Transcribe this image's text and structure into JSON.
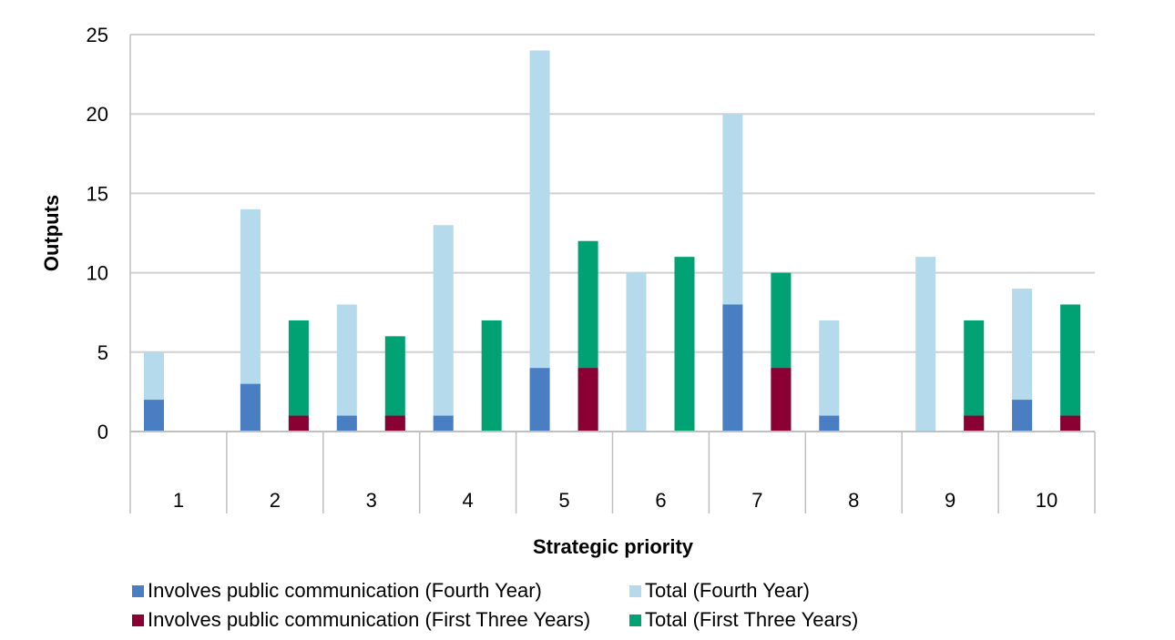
{
  "chart_data": {
    "type": "bar",
    "xlabel": "Strategic priority",
    "ylabel": "Outputs",
    "ylim": [
      0,
      25
    ],
    "yticks": [
      0,
      5,
      10,
      15,
      20,
      25
    ],
    "categories": [
      "1",
      "2",
      "3",
      "4",
      "5",
      "6",
      "7",
      "8",
      "9",
      "10"
    ],
    "grid": true,
    "legend_position": "bottom",
    "series": [
      {
        "name": "Involves public communication (Fourth Year)",
        "color": "#4A7EC2",
        "values": [
          2,
          3,
          1,
          1,
          4,
          0,
          8,
          1,
          0,
          2
        ]
      },
      {
        "name": "Total (Fourth Year)",
        "color": "#B4DAEC",
        "values": [
          5,
          14,
          8,
          13,
          24,
          10,
          20,
          7,
          11,
          9
        ]
      },
      {
        "name": "Involves public communication (First Three Years)",
        "color": "#8A0033",
        "values": [
          0,
          1,
          1,
          0,
          4,
          0,
          4,
          0,
          1,
          1
        ]
      },
      {
        "name": "Total (First Three Years)",
        "color": "#00A173",
        "values": [
          0,
          7,
          6,
          7,
          12,
          11,
          10,
          0,
          7,
          8
        ]
      }
    ]
  }
}
